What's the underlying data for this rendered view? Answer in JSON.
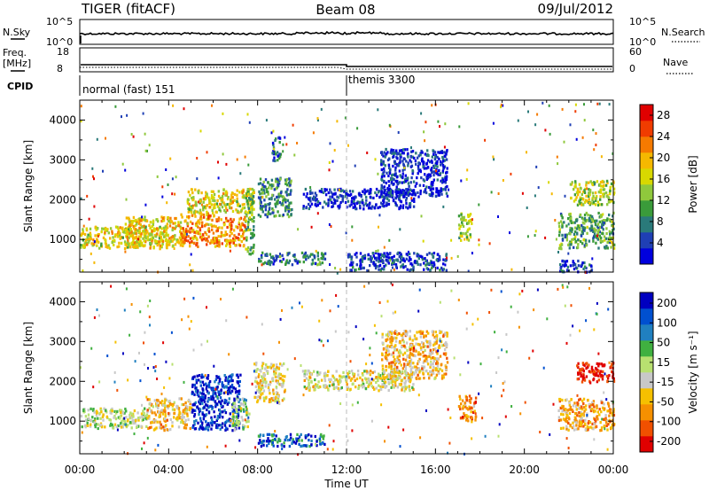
{
  "header": {
    "station": "TIGER (fitACF)",
    "beam": "Beam 08",
    "date": "09/Jul/2012"
  },
  "nsky_panel": {
    "left_label": "N.Sky",
    "right_label": "N.Search",
    "left_ticks": [
      "10^5",
      "10^0"
    ],
    "right_ticks": [
      "10^5",
      "10^0"
    ]
  },
  "freq_panel": {
    "left_label_1": "Freq.",
    "left_label_2": "[MHz]",
    "right_label": "Nave",
    "left_ticks": [
      "18",
      "8"
    ],
    "right_ticks": [
      "60",
      "0"
    ]
  },
  "cpid_panel": {
    "label": "CPID",
    "mode_1": "normal (fast) 151",
    "mode_2": "themis 3300",
    "switch_hour": 12
  },
  "time_axis": {
    "xlabel": "Time UT",
    "ticks": [
      "00:00",
      "04:00",
      "08:00",
      "12:00",
      "16:00",
      "20:00",
      "00:00"
    ],
    "range_hours": [
      0,
      24
    ]
  },
  "chart_data": [
    {
      "type": "heatmap",
      "name": "power",
      "ylabel": "Slant Range [km]",
      "ylim": [
        180,
        4500
      ],
      "yticks": [
        "1000",
        "2000",
        "3000",
        "4000"
      ],
      "colorbar": {
        "label": "Power [dB]",
        "ticks": [
          "28",
          "24",
          "20",
          "16",
          "12",
          "8",
          "4"
        ],
        "range": [
          0,
          30
        ],
        "colors": [
          "#0000dd",
          "#1f3fb5",
          "#2a7a7a",
          "#3a9b3a",
          "#8fc83c",
          "#d8d800",
          "#f5b800",
          "#f57a00",
          "#f03c00",
          "#e00000"
        ]
      },
      "regions": [
        {
          "t": [
            0.0,
            4.0
          ],
          "r": [
            800,
            1350
          ],
          "level": 0.55
        },
        {
          "t": [
            2.0,
            4.6
          ],
          "r": [
            850,
            1600
          ],
          "level": 0.6
        },
        {
          "t": [
            4.5,
            6.0
          ],
          "r": [
            850,
            1700
          ],
          "level": 0.72
        },
        {
          "t": [
            6.0,
            7.4
          ],
          "r": [
            850,
            1600
          ],
          "level": 0.7
        },
        {
          "t": [
            4.8,
            7.8
          ],
          "r": [
            1700,
            2300
          ],
          "level": 0.55
        },
        {
          "t": [
            7.4,
            7.8
          ],
          "r": [
            600,
            2300
          ],
          "level": 0.4
        },
        {
          "t": [
            8.0,
            9.5
          ],
          "r": [
            1600,
            2600
          ],
          "level": 0.3
        },
        {
          "t": [
            8.6,
            9.0
          ],
          "r": [
            3000,
            3600
          ],
          "level": 0.2
        },
        {
          "t": [
            8.0,
            11.0
          ],
          "r": [
            400,
            700
          ],
          "level": 0.25
        },
        {
          "t": [
            10.0,
            15.0
          ],
          "r": [
            1800,
            2300
          ],
          "level": 0.1
        },
        {
          "t": [
            13.5,
            16.5
          ],
          "r": [
            2100,
            3300
          ],
          "level": 0.1
        },
        {
          "t": [
            17.0,
            17.6
          ],
          "r": [
            1000,
            1700
          ],
          "level": 0.45
        },
        {
          "t": [
            12.0,
            16.5
          ],
          "r": [
            250,
            700
          ],
          "level": 0.15
        },
        {
          "t": [
            21.5,
            24.0
          ],
          "r": [
            800,
            1700
          ],
          "level": 0.35
        },
        {
          "t": [
            22.0,
            24.0
          ],
          "r": [
            1900,
            2500
          ],
          "level": 0.5
        },
        {
          "t": [
            21.5,
            23.0
          ],
          "r": [
            200,
            500
          ],
          "level": 0.15
        }
      ]
    },
    {
      "type": "heatmap",
      "name": "velocity",
      "ylabel": "Slant Range [km]",
      "ylim": [
        180,
        4500
      ],
      "yticks": [
        "1000",
        "2000",
        "3000",
        "4000"
      ],
      "colorbar": {
        "label": "Velocity [m s⁻¹]",
        "ticks": [
          "200",
          "100",
          "50",
          "15",
          "-15",
          "-50",
          "-100",
          "-200"
        ],
        "range": [
          -250,
          250
        ],
        "colors": [
          "#e00000",
          "#f05000",
          "#f59000",
          "#f5c000",
          "#c8c8c8",
          "#b8e070",
          "#40b040",
          "#2080c0",
          "#0050d0",
          "#0000c0"
        ]
      },
      "regions": [
        {
          "t": [
            0.0,
            3.0
          ],
          "r": [
            850,
            1350
          ],
          "level": 0.5
        },
        {
          "t": [
            3.0,
            5.0
          ],
          "r": [
            800,
            1600
          ],
          "level": 0.35
        },
        {
          "t": [
            5.0,
            7.2
          ],
          "r": [
            800,
            2200
          ],
          "level": 0.9
        },
        {
          "t": [
            6.8,
            7.6
          ],
          "r": [
            800,
            1600
          ],
          "level": 0.55
        },
        {
          "t": [
            7.8,
            9.2
          ],
          "r": [
            1500,
            2500
          ],
          "level": 0.4
        },
        {
          "t": [
            8.0,
            11.0
          ],
          "r": [
            400,
            700
          ],
          "level": 0.8
        },
        {
          "t": [
            10.0,
            15.0
          ],
          "r": [
            1800,
            2300
          ],
          "level": 0.45
        },
        {
          "t": [
            13.5,
            16.5
          ],
          "r": [
            2100,
            3300
          ],
          "level": 0.35
        },
        {
          "t": [
            17.0,
            17.8
          ],
          "r": [
            1000,
            1700
          ],
          "level": 0.25
        },
        {
          "t": [
            22.3,
            24.0
          ],
          "r": [
            2000,
            2500
          ],
          "level": 0.02
        },
        {
          "t": [
            21.5,
            24.0
          ],
          "r": [
            800,
            1600
          ],
          "level": 0.3
        }
      ]
    }
  ]
}
